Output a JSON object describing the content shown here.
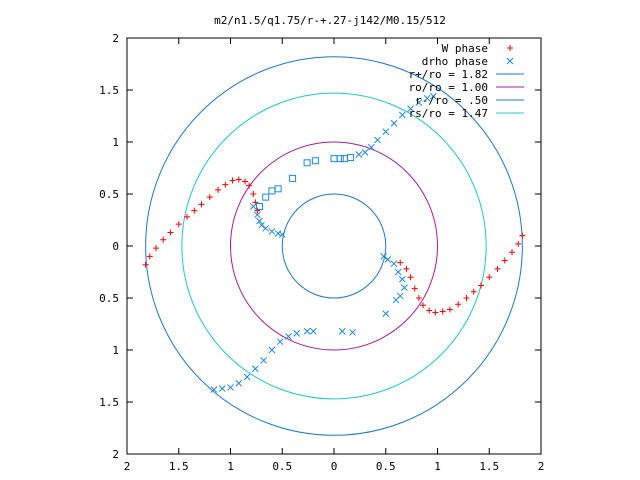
{
  "chart_data": {
    "type": "scatter",
    "title": "m2/n1.5/q1.75/r-+.27-j142/M0.15/512",
    "xlabel": "",
    "ylabel": "",
    "xlim": [
      -2,
      2
    ],
    "ylim": [
      -2,
      2
    ],
    "x_tick_values": [
      -2,
      -1.5,
      -1,
      -0.5,
      0,
      0.5,
      1,
      1.5,
      2
    ],
    "x_tick_labels": [
      "2",
      "1.5",
      "1",
      "0.5",
      "0",
      "0.5",
      "1",
      "1.5",
      "2"
    ],
    "y_tick_values": [
      2,
      1.5,
      1,
      0.5,
      0,
      -0.5,
      -1,
      -1.5,
      -2
    ],
    "y_tick_labels": [
      "2",
      "1.5",
      "1",
      "0.5",
      "0",
      "0.5",
      "1",
      "1.5",
      "2"
    ],
    "grid": false,
    "legend_position": "top-right",
    "circles": [
      {
        "label": "r+/ro = 1.82",
        "radius": 1.82,
        "color": "#1f77d0"
      },
      {
        "label": "ro/ro = 1.00",
        "radius": 1.0,
        "color": "#a020a0"
      },
      {
        "label": "r-/ro = .50",
        "radius": 0.5,
        "color": "#1f77d0"
      },
      {
        "label": "rs/ro = 1.47",
        "radius": 1.47,
        "color": "#20c8d0"
      }
    ],
    "series": [
      {
        "name": "W phase",
        "marker": "plus",
        "color": "#ff0000",
        "points": [
          [
            -1.82,
            -0.18
          ],
          [
            -1.78,
            -0.1
          ],
          [
            -1.72,
            -0.02
          ],
          [
            -1.65,
            0.06
          ],
          [
            -1.58,
            0.13
          ],
          [
            -1.5,
            0.21
          ],
          [
            -1.42,
            0.28
          ],
          [
            -1.35,
            0.34
          ],
          [
            -1.28,
            0.4
          ],
          [
            -1.2,
            0.47
          ],
          [
            -1.12,
            0.54
          ],
          [
            -1.05,
            0.59
          ],
          [
            -0.98,
            0.63
          ],
          [
            -0.92,
            0.64
          ],
          [
            -0.86,
            0.62
          ],
          [
            -0.82,
            0.58
          ],
          [
            -0.78,
            0.5
          ],
          [
            -0.76,
            0.42
          ],
          [
            -0.74,
            0.34
          ],
          [
            1.82,
            0.1
          ],
          [
            1.78,
            0.02
          ],
          [
            1.72,
            -0.06
          ],
          [
            1.65,
            -0.14
          ],
          [
            1.58,
            -0.22
          ],
          [
            1.5,
            -0.3
          ],
          [
            1.42,
            -0.38
          ],
          [
            1.35,
            -0.44
          ],
          [
            1.28,
            -0.5
          ],
          [
            1.2,
            -0.56
          ],
          [
            1.12,
            -0.61
          ],
          [
            1.05,
            -0.63
          ],
          [
            0.98,
            -0.64
          ],
          [
            0.92,
            -0.62
          ],
          [
            0.86,
            -0.57
          ],
          [
            0.82,
            -0.5
          ],
          [
            0.78,
            -0.41
          ],
          [
            0.74,
            -0.3
          ],
          [
            0.7,
            -0.22
          ],
          [
            0.64,
            -0.16
          ]
        ]
      },
      {
        "name": "drho phase",
        "marker": "cross",
        "color": "#1e88e5",
        "points": [
          [
            -0.78,
            0.38
          ],
          [
            -0.74,
            0.3
          ],
          [
            -0.72,
            0.24
          ],
          [
            -0.7,
            0.2
          ],
          [
            -0.66,
            0.17
          ],
          [
            -0.6,
            0.14
          ],
          [
            -0.54,
            0.12
          ],
          [
            -0.5,
            0.11
          ],
          [
            0.24,
            0.88
          ],
          [
            0.3,
            0.9
          ],
          [
            0.36,
            0.95
          ],
          [
            0.42,
            1.02
          ],
          [
            0.5,
            1.1
          ],
          [
            0.58,
            1.18
          ],
          [
            0.66,
            1.26
          ],
          [
            0.74,
            1.32
          ],
          [
            0.82,
            1.38
          ],
          [
            0.9,
            1.42
          ],
          [
            0.96,
            1.44
          ],
          [
            -1.16,
            -1.38
          ],
          [
            -1.08,
            -1.37
          ],
          [
            -1.0,
            -1.36
          ],
          [
            -0.92,
            -1.32
          ],
          [
            -0.84,
            -1.26
          ],
          [
            -0.76,
            -1.18
          ],
          [
            -0.68,
            -1.1
          ],
          [
            -0.6,
            -1.0
          ],
          [
            -0.52,
            -0.92
          ],
          [
            -0.44,
            -0.87
          ],
          [
            -0.36,
            -0.84
          ],
          [
            -0.26,
            -0.82
          ],
          [
            -0.2,
            -0.82
          ],
          [
            0.48,
            -0.1
          ],
          [
            0.52,
            -0.13
          ],
          [
            0.58,
            -0.17
          ],
          [
            0.62,
            -0.25
          ],
          [
            0.66,
            -0.32
          ],
          [
            0.68,
            -0.4
          ],
          [
            0.64,
            -0.48
          ],
          [
            0.6,
            -0.52
          ],
          [
            0.5,
            -0.65
          ],
          [
            0.18,
            -0.83
          ],
          [
            0.08,
            -0.82
          ]
        ]
      },
      {
        "name": "",
        "marker": "box",
        "color": "#1e88e5",
        "points": [
          [
            -0.72,
            0.38
          ],
          [
            -0.66,
            0.47
          ],
          [
            -0.6,
            0.53
          ],
          [
            -0.54,
            0.55
          ],
          [
            -0.4,
            0.65
          ],
          [
            -0.26,
            0.8
          ],
          [
            -0.18,
            0.82
          ],
          [
            0.0,
            0.84
          ],
          [
            0.06,
            0.84
          ],
          [
            0.1,
            0.84
          ],
          [
            0.16,
            0.85
          ]
        ]
      }
    ]
  }
}
